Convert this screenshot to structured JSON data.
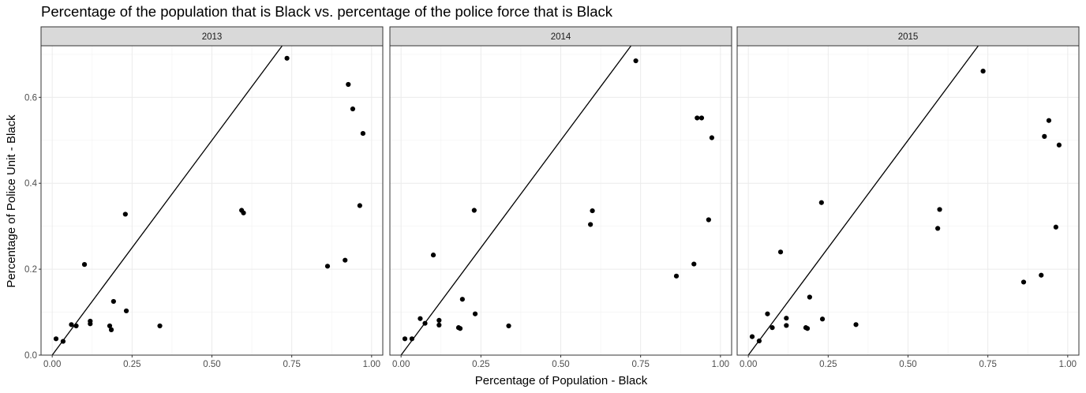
{
  "chart_data": {
    "type": "scatter",
    "title": "Percentage of the population that is Black vs. percentage of the police force that is Black",
    "xlabel": "Percentage of Population - Black",
    "ylabel": "Percentage of Police Unit - Black",
    "xlim": [
      -0.035,
      1.035
    ],
    "ylim": [
      0,
      0.72
    ],
    "x_ticks": [
      0.0,
      0.25,
      0.5,
      0.75,
      1.0
    ],
    "x_tick_labels": [
      "0.00",
      "0.25",
      "0.50",
      "0.75",
      "1.00"
    ],
    "y_ticks": [
      0.0,
      0.2,
      0.4,
      0.6
    ],
    "y_tick_labels": [
      "0.0",
      "0.2",
      "0.4",
      "0.6"
    ],
    "grid": true,
    "reference_line": {
      "intercept": 0,
      "slope": 1
    },
    "panels": [
      {
        "label": "2013",
        "points": [
          {
            "x": 0.012,
            "y": 0.038
          },
          {
            "x": 0.034,
            "y": 0.032
          },
          {
            "x": 0.06,
            "y": 0.071
          },
          {
            "x": 0.075,
            "y": 0.068
          },
          {
            "x": 0.101,
            "y": 0.211
          },
          {
            "x": 0.119,
            "y": 0.079
          },
          {
            "x": 0.119,
            "y": 0.073
          },
          {
            "x": 0.18,
            "y": 0.068
          },
          {
            "x": 0.185,
            "y": 0.059
          },
          {
            "x": 0.192,
            "y": 0.125
          },
          {
            "x": 0.229,
            "y": 0.328
          },
          {
            "x": 0.232,
            "y": 0.103
          },
          {
            "x": 0.337,
            "y": 0.068
          },
          {
            "x": 0.593,
            "y": 0.337
          },
          {
            "x": 0.599,
            "y": 0.331
          },
          {
            "x": 0.735,
            "y": 0.691
          },
          {
            "x": 0.862,
            "y": 0.207
          },
          {
            "x": 0.917,
            "y": 0.221
          },
          {
            "x": 0.927,
            "y": 0.63
          },
          {
            "x": 0.941,
            "y": 0.573
          },
          {
            "x": 0.963,
            "y": 0.348
          },
          {
            "x": 0.973,
            "y": 0.516
          }
        ]
      },
      {
        "label": "2014",
        "points": [
          {
            "x": 0.012,
            "y": 0.038
          },
          {
            "x": 0.034,
            "y": 0.038
          },
          {
            "x": 0.06,
            "y": 0.085
          },
          {
            "x": 0.075,
            "y": 0.074
          },
          {
            "x": 0.101,
            "y": 0.233
          },
          {
            "x": 0.119,
            "y": 0.081
          },
          {
            "x": 0.119,
            "y": 0.07
          },
          {
            "x": 0.18,
            "y": 0.064
          },
          {
            "x": 0.185,
            "y": 0.062
          },
          {
            "x": 0.192,
            "y": 0.13
          },
          {
            "x": 0.229,
            "y": 0.337
          },
          {
            "x": 0.232,
            "y": 0.096
          },
          {
            "x": 0.337,
            "y": 0.068
          },
          {
            "x": 0.593,
            "y": 0.304
          },
          {
            "x": 0.599,
            "y": 0.336
          },
          {
            "x": 0.735,
            "y": 0.685
          },
          {
            "x": 0.862,
            "y": 0.184
          },
          {
            "x": 0.917,
            "y": 0.212
          },
          {
            "x": 0.927,
            "y": 0.552
          },
          {
            "x": 0.941,
            "y": 0.552
          },
          {
            "x": 0.963,
            "y": 0.315
          },
          {
            "x": 0.973,
            "y": 0.506
          }
        ]
      },
      {
        "label": "2015",
        "points": [
          {
            "x": 0.012,
            "y": 0.043
          },
          {
            "x": 0.034,
            "y": 0.033
          },
          {
            "x": 0.06,
            "y": 0.096
          },
          {
            "x": 0.075,
            "y": 0.064
          },
          {
            "x": 0.101,
            "y": 0.24
          },
          {
            "x": 0.119,
            "y": 0.086
          },
          {
            "x": 0.119,
            "y": 0.069
          },
          {
            "x": 0.18,
            "y": 0.064
          },
          {
            "x": 0.185,
            "y": 0.062
          },
          {
            "x": 0.192,
            "y": 0.135
          },
          {
            "x": 0.229,
            "y": 0.355
          },
          {
            "x": 0.232,
            "y": 0.084
          },
          {
            "x": 0.337,
            "y": 0.071
          },
          {
            "x": 0.593,
            "y": 0.295
          },
          {
            "x": 0.599,
            "y": 0.339
          },
          {
            "x": 0.735,
            "y": 0.661
          },
          {
            "x": 0.862,
            "y": 0.17
          },
          {
            "x": 0.917,
            "y": 0.186
          },
          {
            "x": 0.927,
            "y": 0.509
          },
          {
            "x": 0.941,
            "y": 0.546
          },
          {
            "x": 0.963,
            "y": 0.298
          },
          {
            "x": 0.973,
            "y": 0.489
          }
        ]
      }
    ]
  }
}
